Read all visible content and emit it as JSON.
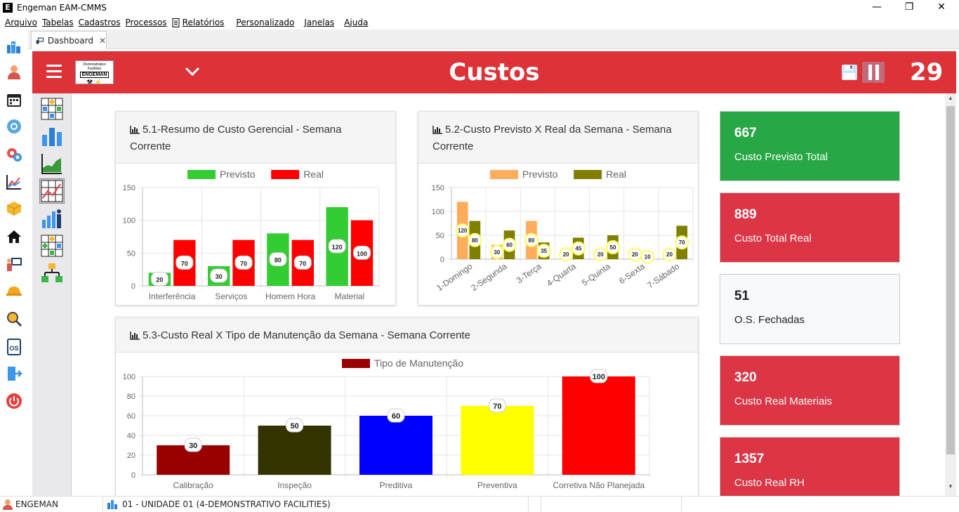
{
  "window": {
    "title": "Engeman EAM-CMMS",
    "app_letter": "E",
    "minimize": "—",
    "restore": "❐",
    "close": "✕"
  },
  "menu": [
    "Arquivo",
    "Tabelas",
    "Cadastros",
    "Processos",
    "Relatórios",
    "Personalizado",
    "Janelas",
    "Ajuda"
  ],
  "tab": {
    "label": "Dashboard",
    "close": "✕"
  },
  "header": {
    "title": "Custos",
    "count": "29",
    "logo": {
      "line1": "Demonstrativo Facilities",
      "line2": "ENGEMAN",
      "line3": "⚒ ⚡"
    }
  },
  "kpis": [
    {
      "value": "667",
      "label": "Custo Previsto Total",
      "color": "#28a745"
    },
    {
      "value": "889",
      "label": "Custo Total Real",
      "color": "#dc3545"
    },
    {
      "value": "51",
      "label": "O.S. Fechadas",
      "color": "#f8f9fa"
    },
    {
      "value": "320",
      "label": "Custo Real Materiais",
      "color": "#dc3545"
    },
    {
      "value": "1357",
      "label": "Custo Real RH",
      "color": "#dc3545"
    }
  ],
  "status": {
    "user": "ENGEMAN",
    "unit": "01 - UNIDADE 01 (4-DEMONSTRATIVO FACILITIES)"
  },
  "chart_data": [
    {
      "id": "c51",
      "title": "5.1-Resumo de Custo Gerencial - Semana Corrente",
      "type": "bar",
      "categories": [
        "Interferência",
        "Serviços",
        "Homem Hora",
        "Material"
      ],
      "series": [
        {
          "name": "Previsto",
          "color": "#33cc33",
          "values": [
            20,
            30,
            80,
            120
          ]
        },
        {
          "name": "Real",
          "color": "#ff0000",
          "values": [
            70,
            70,
            70,
            100
          ]
        }
      ],
      "ylim": [
        0,
        150
      ],
      "yticks": [
        0,
        50,
        100,
        150
      ],
      "legend": "top",
      "grid": true
    },
    {
      "id": "c52",
      "title": "5.2-Custo Previsto X Real da Semana - Semana Corrente",
      "type": "bar",
      "categories": [
        "1-Domingo",
        "2-Segunda",
        "3-Terça",
        "4-Quarta",
        "5-Quinta",
        "6-Sexta",
        "7-Sábado"
      ],
      "series": [
        {
          "name": "Previsto",
          "color": "#ffad5c",
          "values": [
            120,
            30,
            80,
            20,
            20,
            20,
            20
          ]
        },
        {
          "name": "Real",
          "color": "#808000",
          "values": [
            80,
            60,
            35,
            45,
            50,
            10,
            70
          ]
        }
      ],
      "ylim": [
        0,
        150
      ],
      "yticks": [
        0,
        50,
        100,
        150
      ],
      "legend": "top",
      "grid": true
    },
    {
      "id": "c53",
      "title": "5.3-Custo Real X Tipo de Manutenção da Semana - Semana Corrente",
      "type": "bar",
      "categories": [
        "Calibração",
        "Inspeção",
        "Preditiva",
        "Preventiva",
        "Corretiva Não Planejada"
      ],
      "series": [
        {
          "name": "Tipo de Manutenção",
          "color": "#990000",
          "values": [
            30,
            50,
            60,
            70,
            100
          ]
        }
      ],
      "bar_colors": [
        "#990000",
        "#333300",
        "#0000ff",
        "#ffff00",
        "#ff0000"
      ],
      "ylim": [
        0,
        100
      ],
      "yticks": [
        0,
        20,
        40,
        60,
        80,
        100
      ],
      "legend": "top",
      "grid": true
    }
  ]
}
